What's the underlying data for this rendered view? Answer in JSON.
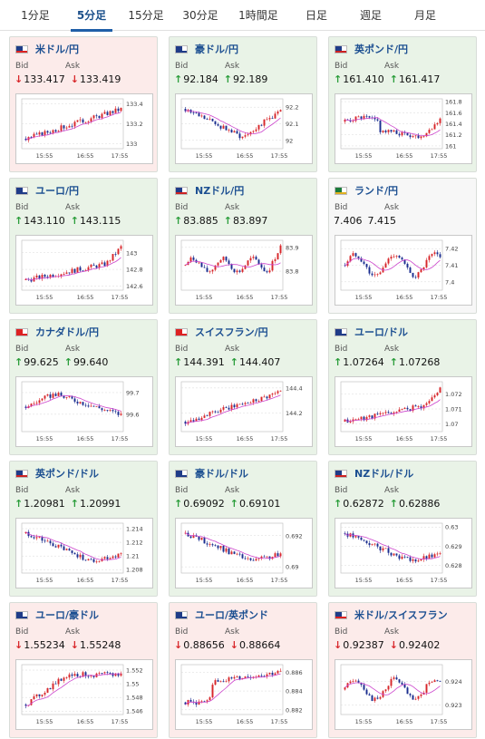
{
  "tabs": [
    "1分足",
    "5分足",
    "15分足",
    "30分足",
    "1時間足",
    "日足",
    "週足",
    "月足"
  ],
  "active_tab": 1,
  "labels": {
    "bid": "Bid",
    "ask": "Ask"
  },
  "colors": {
    "up": "#2a9d3a",
    "down": "#d8262a",
    "ma": "#cc44cc",
    "ma2": "#33aadd",
    "candle_up": "#d8262a",
    "candle_down": "#1a2d8f"
  },
  "x_ticks": [
    "15:55",
    "16:55",
    "17:55"
  ],
  "cards": [
    {
      "pair": "米ドル/円",
      "flag": "us",
      "trend": "down",
      "dir": "down",
      "bid": "133.417",
      "ask": "133.419",
      "y_ticks": [
        "133.4",
        "133.2",
        "133"
      ],
      "ylim": [
        132.95,
        133.45
      ],
      "shape": "rise"
    },
    {
      "pair": "豪ドル/円",
      "flag": "au",
      "trend": "up",
      "dir": "up",
      "bid": "92.184",
      "ask": "92.189",
      "y_ticks": [
        "92.2",
        "92.1",
        "92"
      ],
      "ylim": [
        91.95,
        92.25
      ],
      "shape": "dip"
    },
    {
      "pair": "英ポンド/円",
      "flag": "gb",
      "trend": "up",
      "dir": "up",
      "bid": "161.410",
      "ask": "161.417",
      "y_ticks": [
        "161.8",
        "161.6",
        "161.4",
        "161.2",
        "161"
      ],
      "ylim": [
        160.95,
        161.85
      ],
      "shape": "fall_rise"
    },
    {
      "pair": "ユーロ/円",
      "flag": "eu",
      "trend": "up",
      "dir": "up",
      "bid": "143.110",
      "ask": "143.115",
      "y_ticks": [
        "143",
        "142.8",
        "142.6"
      ],
      "ylim": [
        142.55,
        143.15
      ],
      "shape": "rise_end"
    },
    {
      "pair": "NZドル/円",
      "flag": "nz",
      "trend": "up",
      "dir": "up",
      "bid": "83.885",
      "ask": "83.897",
      "y_ticks": [
        "83.9",
        "83.8"
      ],
      "ylim": [
        83.72,
        83.93
      ],
      "shape": "flat_spike"
    },
    {
      "pair": "ランド/円",
      "flag": "za",
      "trend": "flat",
      "dir": "none",
      "bid": "7.406",
      "ask": "7.415",
      "y_ticks": [
        "7.42",
        "7.41",
        "7.4"
      ],
      "ylim": [
        7.395,
        7.425
      ],
      "shape": "noisy"
    },
    {
      "pair": "カナダドル/円",
      "flag": "ca",
      "trend": "up",
      "dir": "up",
      "bid": "99.625",
      "ask": "99.640",
      "y_ticks": [
        "99.7",
        "99.6"
      ],
      "ylim": [
        99.52,
        99.75
      ],
      "shape": "hump"
    },
    {
      "pair": "スイスフラン/円",
      "flag": "ch",
      "trend": "up",
      "dir": "up",
      "bid": "144.391",
      "ask": "144.407",
      "y_ticks": [
        "144.4",
        "144.2"
      ],
      "ylim": [
        144.05,
        144.45
      ],
      "shape": "rise"
    },
    {
      "pair": "ユーロ/ドル",
      "flag": "eu",
      "trend": "up",
      "dir": "up",
      "bid": "1.07264",
      "ask": "1.07268",
      "y_ticks": [
        "1.072",
        "1.071",
        "1.07"
      ],
      "ylim": [
        1.0695,
        1.0728
      ],
      "shape": "rise_end"
    },
    {
      "pair": "英ポンド/ドル",
      "flag": "gb",
      "trend": "up",
      "dir": "up",
      "bid": "1.20981",
      "ask": "1.20991",
      "y_ticks": [
        "1.214",
        "1.212",
        "1.21",
        "1.208"
      ],
      "ylim": [
        1.2075,
        1.2148
      ],
      "shape": "fall"
    },
    {
      "pair": "豪ドル/ドル",
      "flag": "au",
      "trend": "up",
      "dir": "up",
      "bid": "0.69092",
      "ask": "0.69101",
      "y_ticks": [
        "0.692",
        "0.69"
      ],
      "ylim": [
        0.6896,
        0.6928
      ],
      "shape": "fall"
    },
    {
      "pair": "NZドル/ドル",
      "flag": "nz",
      "trend": "up",
      "dir": "up",
      "bid": "0.62872",
      "ask": "0.62886",
      "y_ticks": [
        "0.63",
        "0.629",
        "0.628"
      ],
      "ylim": [
        0.6276,
        0.6302
      ],
      "shape": "fall"
    },
    {
      "pair": "ユーロ/豪ドル",
      "flag": "eu",
      "trend": "down",
      "dir": "down",
      "bid": "1.55234",
      "ask": "1.55248",
      "y_ticks": [
        "1.552",
        "1.55",
        "1.548",
        "1.546"
      ],
      "ylim": [
        1.5455,
        1.5528
      ],
      "shape": "rise_plateau"
    },
    {
      "pair": "ユーロ/英ポンド",
      "flag": "eu",
      "trend": "down",
      "dir": "down",
      "bid": "0.88656",
      "ask": "0.88664",
      "y_ticks": [
        "0.886",
        "0.884",
        "0.882"
      ],
      "ylim": [
        0.8815,
        0.8868
      ],
      "shape": "step_up"
    },
    {
      "pair": "米ドル/スイスフラン",
      "flag": "us",
      "trend": "down",
      "dir": "down",
      "bid": "0.92387",
      "ask": "0.92402",
      "y_ticks": [
        "0.924",
        "0.923"
      ],
      "ylim": [
        0.9226,
        0.9247
      ],
      "shape": "noisy"
    }
  ]
}
